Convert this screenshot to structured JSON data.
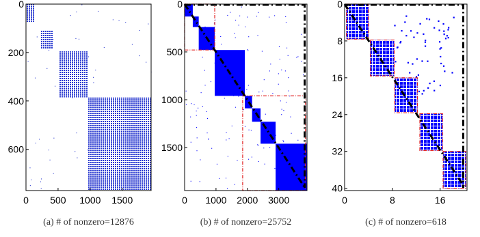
{
  "chart_data": [
    {
      "type": "heatmap",
      "subtype": "sparsity-pattern",
      "caption": "(a) # of nonzero=12876",
      "xlim": [
        0,
        1950
      ],
      "ylim": [
        0,
        770
      ],
      "x_ticks": [
        0,
        500,
        1000,
        1500
      ],
      "y_ticks": [
        0,
        200,
        400,
        600
      ],
      "dense_blocks": [
        {
          "x": [
            0,
            130
          ],
          "y": [
            0,
            75
          ]
        },
        {
          "x": [
            230,
            420
          ],
          "y": [
            110,
            185
          ]
        },
        {
          "x": [
            520,
            960
          ],
          "y": [
            195,
            385
          ]
        },
        {
          "x": [
            960,
            1950
          ],
          "y": [
            385,
            770
          ]
        }
      ],
      "scatter_points": 60,
      "marker_color": "#2a3ad0"
    },
    {
      "type": "heatmap",
      "subtype": "sparsity-pattern",
      "caption": "(b) # of nonzero=25752",
      "xlim": [
        0,
        3900
      ],
      "ylim": [
        0,
        1950
      ],
      "x_ticks": [
        0,
        1000,
        2000,
        3000
      ],
      "y_ticks": [
        0,
        500,
        1000,
        1500
      ],
      "dense_blocks": [
        {
          "x": [
            0,
            260
          ],
          "y": [
            0,
            130
          ]
        },
        {
          "x": [
            260,
            450
          ],
          "y": [
            130,
            240
          ]
        },
        {
          "x": [
            450,
            960
          ],
          "y": [
            240,
            480
          ]
        },
        {
          "x": [
            960,
            1920
          ],
          "y": [
            480,
            960
          ]
        },
        {
          "x": [
            1920,
            2150
          ],
          "y": [
            960,
            1090
          ]
        },
        {
          "x": [
            2150,
            2420
          ],
          "y": [
            1090,
            1230
          ]
        },
        {
          "x": [
            2420,
            2900
          ],
          "y": [
            1230,
            1460
          ]
        },
        {
          "x": [
            2900,
            3900
          ],
          "y": [
            1460,
            1950
          ]
        }
      ],
      "red_boxes": [
        {
          "x": [
            0,
            960
          ],
          "y": [
            0,
            480
          ]
        },
        {
          "x": [
            1850,
            3850
          ],
          "y": [
            960,
            1950
          ]
        }
      ],
      "black_box": {
        "x": [
          0,
          3870
        ],
        "y": [
          0,
          1950
        ]
      },
      "scatter_points": 130,
      "marker_color": "#0000ff"
    },
    {
      "type": "heatmap",
      "subtype": "sparsity-pattern",
      "caption": "(c) # of nonzero=618",
      "xlim": [
        0,
        20.5
      ],
      "ylim": [
        0,
        40.5
      ],
      "x_ticks": [
        0,
        8,
        16
      ],
      "y_ticks": [
        0,
        8,
        16,
        24,
        32,
        40
      ],
      "dense_blocks": [
        {
          "x": [
            0.3,
            4.0
          ],
          "y": [
            0,
            7.6
          ]
        },
        {
          "x": [
            4.3,
            8.3
          ],
          "y": [
            7.8,
            15.6
          ]
        },
        {
          "x": [
            8.4,
            12.2
          ],
          "y": [
            16.0,
            23.6
          ]
        },
        {
          "x": [
            12.6,
            16.4
          ],
          "y": [
            23.8,
            31.8
          ]
        },
        {
          "x": [
            16.5,
            20.3
          ],
          "y": [
            32.0,
            40.0
          ]
        }
      ],
      "scatter_points": 60,
      "marker_color": "#0000ff"
    }
  ]
}
